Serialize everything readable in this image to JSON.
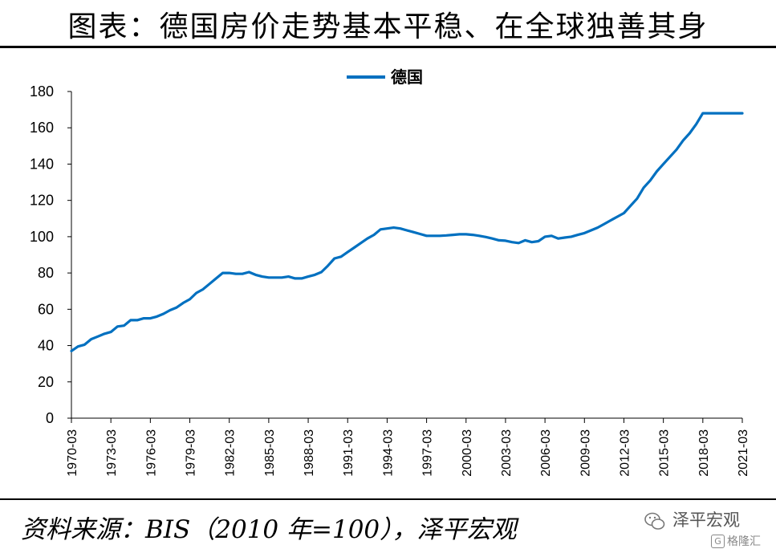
{
  "title": "图表：德国房价走势基本平稳、在全球独善其身",
  "source": "资料来源：BIS（2010 年=100），泽平宏观",
  "watermark": {
    "name": "泽平宏观",
    "logo": "格隆汇"
  },
  "chart_data": {
    "type": "line",
    "series": [
      {
        "name": "德国",
        "color": "#0070C0",
        "x": [
          "1970-03",
          "1970-09",
          "1971-03",
          "1971-09",
          "1972-03",
          "1972-09",
          "1973-03",
          "1973-09",
          "1974-03",
          "1974-09",
          "1975-03",
          "1975-09",
          "1976-03",
          "1976-09",
          "1977-03",
          "1977-09",
          "1978-03",
          "1978-09",
          "1979-03",
          "1979-09",
          "1980-03",
          "1980-09",
          "1981-03",
          "1981-09",
          "1982-03",
          "1982-09",
          "1983-03",
          "1983-09",
          "1984-03",
          "1984-09",
          "1985-03",
          "1985-09",
          "1986-03",
          "1986-09",
          "1987-03",
          "1987-09",
          "1988-03",
          "1988-09",
          "1989-03",
          "1989-09",
          "1990-03",
          "1990-09",
          "1991-03",
          "1991-09",
          "1992-03",
          "1992-09",
          "1993-03",
          "1993-09",
          "1994-03",
          "1994-09",
          "1995-03",
          "1995-09",
          "1996-03",
          "1996-09",
          "1997-03",
          "1997-09",
          "1998-03",
          "1998-09",
          "1999-03",
          "1999-09",
          "2000-03",
          "2000-09",
          "2001-03",
          "2001-09",
          "2002-03",
          "2002-09",
          "2003-03",
          "2003-09",
          "2004-03",
          "2004-09",
          "2005-03",
          "2005-09",
          "2006-03",
          "2006-09",
          "2007-03",
          "2007-09",
          "2008-03",
          "2008-09",
          "2009-03",
          "2009-09",
          "2010-03",
          "2010-09",
          "2011-03",
          "2011-09",
          "2012-03",
          "2012-09",
          "2013-03",
          "2013-09",
          "2014-03",
          "2014-09",
          "2015-03",
          "2015-09",
          "2016-03",
          "2016-09",
          "2017-03",
          "2017-09",
          "2018-03",
          "2018-09",
          "2019-03",
          "2019-09",
          "2020-03",
          "2020-09",
          "2021-03"
        ],
        "values": [
          37,
          39.5,
          40.5,
          43.5,
          45,
          46.5,
          47.5,
          50.5,
          51,
          54,
          54,
          55,
          55,
          56,
          57.5,
          59.5,
          61,
          63.5,
          65.5,
          69,
          71,
          74,
          77,
          80,
          80,
          79.5,
          79.5,
          80.5,
          79,
          78,
          77.5,
          77.5,
          77.5,
          78,
          77,
          77,
          78,
          79,
          80.5,
          84,
          88,
          89,
          91.5,
          94,
          96.5,
          99,
          101,
          104,
          104.5,
          105,
          104.5,
          103.5,
          102.5,
          101.5,
          100.5,
          100.5,
          100.5,
          100.7,
          101,
          101.3,
          101.3,
          101,
          100.5,
          99.8,
          99,
          98,
          97.8,
          97,
          96.5,
          98,
          97,
          97.5,
          100,
          100.5,
          99,
          99.5,
          100,
          101,
          102,
          103.5,
          105,
          107,
          109,
          111,
          113,
          117,
          121,
          127,
          131,
          136,
          140,
          144,
          148,
          153,
          157,
          162,
          168,
          168,
          168,
          168,
          168,
          168,
          168
        ]
      }
    ],
    "x_ticks": [
      "1970-03",
      "1973-03",
      "1976-03",
      "1979-03",
      "1982-03",
      "1985-03",
      "1988-03",
      "1991-03",
      "1994-03",
      "1997-03",
      "2000-03",
      "2003-03",
      "2006-03",
      "2009-03",
      "2012-03",
      "2015-03",
      "2018-03",
      "2021-03"
    ],
    "y_ticks": [
      0,
      20,
      40,
      60,
      80,
      100,
      120,
      140,
      160,
      180
    ],
    "ylim": [
      0,
      180
    ],
    "xlabel": "",
    "ylabel": "",
    "grid": false,
    "legend_position": "top-center"
  }
}
